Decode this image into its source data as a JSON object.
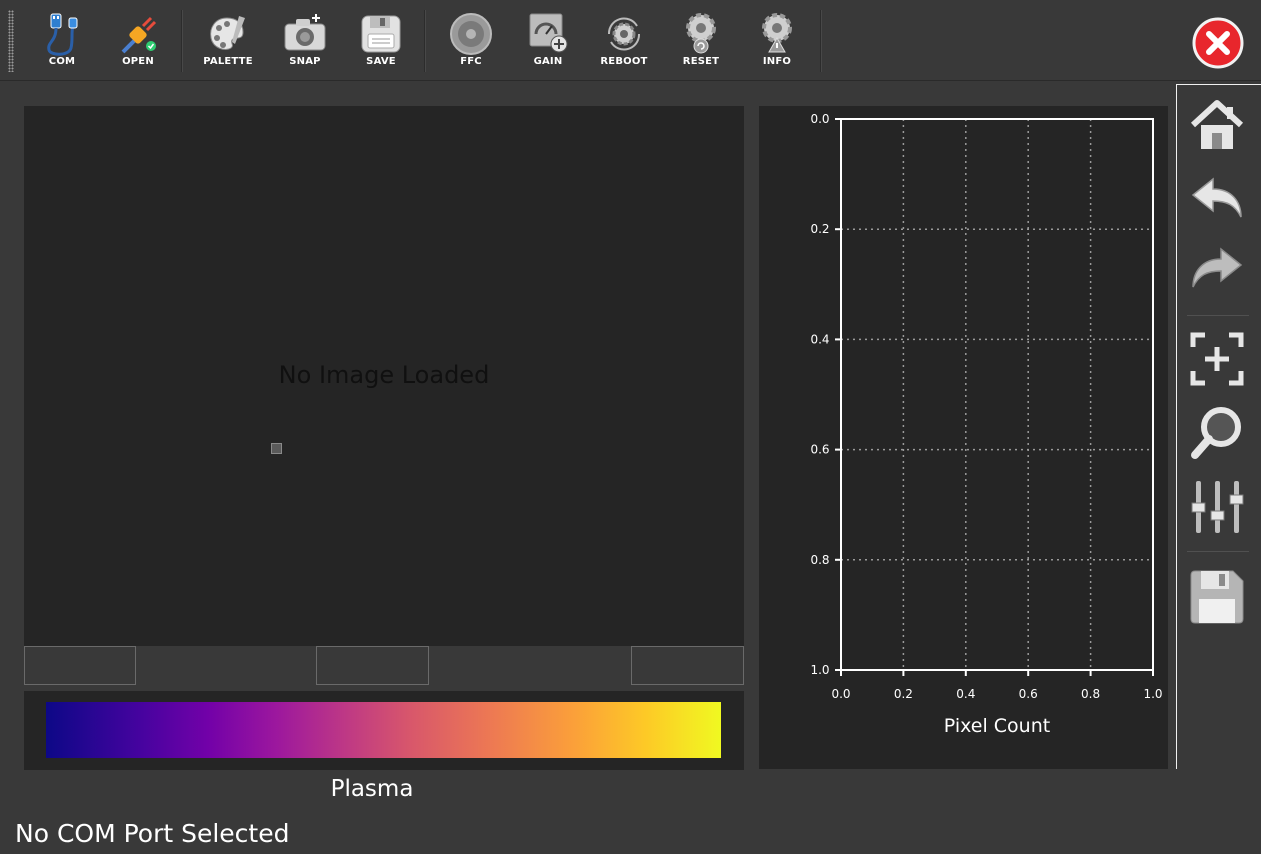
{
  "toolbar": {
    "com_label": "COM",
    "open_label": "OPEN",
    "palette_label": "PALETTE",
    "snap_label": "SNAP",
    "save_label": "SAVE",
    "ffc_label": "FFC",
    "gain_label": "GAIN",
    "reboot_label": "REBOOT",
    "reset_label": "RESET",
    "info_label": "INFO"
  },
  "image_panel": {
    "placeholder": "No Image Loaded"
  },
  "colorbar": {
    "palette_name": "Plasma",
    "colors": [
      "#0d0887",
      "#46039f",
      "#7201a8",
      "#9c179e",
      "#bd3786",
      "#d8576b",
      "#ed7953",
      "#fb9f3a",
      "#fdca26",
      "#f0f921"
    ]
  },
  "status": {
    "message": "No COM Port Selected"
  },
  "histogram": {
    "chart_data": {
      "type": "line",
      "series": [],
      "xlabel": "Pixel Count",
      "ylabel": "",
      "xlim": [
        0.0,
        1.0
      ],
      "ylim": [
        0.0,
        1.0
      ],
      "y_inverted": true,
      "x_ticks": [
        "0.0",
        "0.2",
        "0.4",
        "0.6",
        "0.8",
        "1.0"
      ],
      "y_ticks": [
        "0.0",
        "0.2",
        "0.4",
        "0.6",
        "0.8",
        "1.0"
      ],
      "grid": true
    }
  },
  "side_toolbar": {
    "icons": [
      "home-icon",
      "back-icon",
      "forward-icon",
      "pan-icon",
      "zoom-icon",
      "configure-subplots-icon",
      "save-figure-icon"
    ]
  },
  "theme": {
    "background": "#393939",
    "panel": "#252525",
    "close_red": "#e8262c"
  }
}
